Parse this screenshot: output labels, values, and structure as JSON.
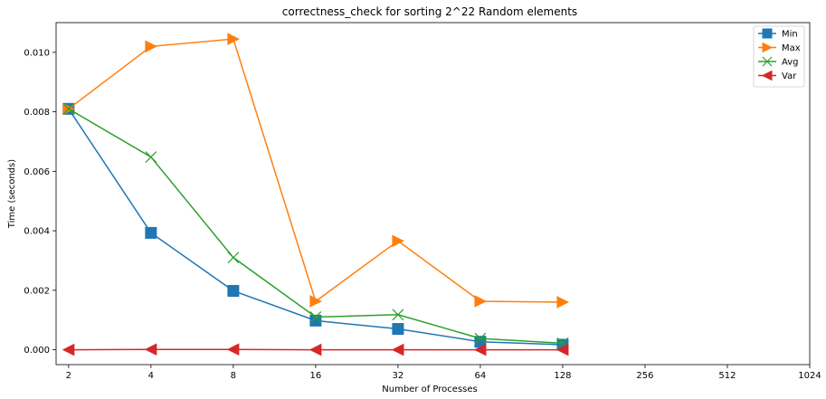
{
  "chart_data": {
    "type": "line",
    "title": "correctness_check for sorting 2^22 Random elements",
    "xlabel": "Number of Processes",
    "ylabel": "Time (seconds)",
    "x_scale": "log2",
    "xticks": [
      "2",
      "4",
      "8",
      "16",
      "32",
      "64",
      "128",
      "256",
      "512",
      "1024"
    ],
    "xlim": [
      1.8,
      1024
    ],
    "yticks": [
      "0.000",
      "0.002",
      "0.004",
      "0.006",
      "0.008",
      "0.010"
    ],
    "ylim": [
      -0.0005,
      0.011
    ],
    "grid": false,
    "legend_position": "top-right",
    "x": [
      2,
      4,
      8,
      16,
      32,
      64,
      128
    ],
    "series": [
      {
        "name": "Min",
        "color": "#1f77b4",
        "marker": "square",
        "values": [
          0.0081,
          0.00393,
          0.00198,
          0.00098,
          0.0007,
          0.00027,
          0.00017
        ]
      },
      {
        "name": "Max",
        "color": "#ff7f0e",
        "marker": "triangle-right",
        "values": [
          0.0081,
          0.0102,
          0.01045,
          0.00163,
          0.00366,
          0.00163,
          0.0016
        ]
      },
      {
        "name": "Avg",
        "color": "#2ca02c",
        "marker": "x",
        "values": [
          0.0081,
          0.00648,
          0.0031,
          0.0011,
          0.00118,
          0.00038,
          0.00022
        ]
      },
      {
        "name": "Var",
        "color": "#d62728",
        "marker": "triangle-left",
        "values": [
          0.0,
          1e-05,
          1e-05,
          0.0,
          0.0,
          0.0,
          0.0
        ]
      }
    ]
  }
}
